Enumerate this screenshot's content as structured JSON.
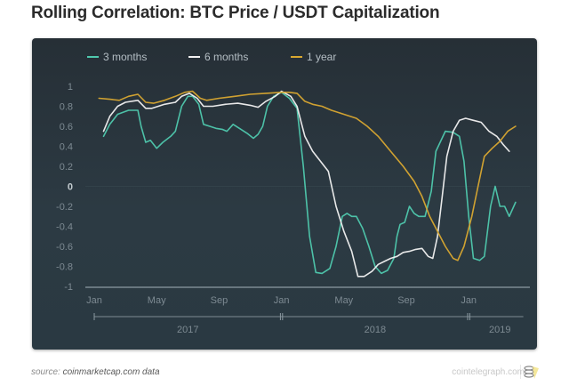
{
  "page": {
    "title": "Rolling Correlation: BTC Price / USDT Capitalization",
    "source_prefix": "source:",
    "source_text": "coinmarketcap.com data",
    "brand": "cointelegraph.com",
    "logo_icon": "cointelegraph-logo-icon"
  },
  "chart_data": {
    "type": "line",
    "title": "Rolling Correlation: BTC Price / USDT Capitalization",
    "xlabel": "",
    "ylabel": "",
    "ylim": [
      -1,
      1
    ],
    "x_unit": "months since Jan 2017",
    "xlim": [
      0,
      27.5
    ],
    "yticks": [
      "1",
      "0.8",
      "0.6",
      "0.4",
      "0.2",
      "0",
      "-0.2",
      "-0.4",
      "-0.6",
      "-0.8",
      "-1"
    ],
    "ytick_values": [
      1,
      0.8,
      0.6,
      0.4,
      0.2,
      0,
      -0.2,
      -0.4,
      -0.6,
      -0.8,
      -1
    ],
    "xticks": [
      "Jan",
      "May",
      "Sep",
      "Jan",
      "May",
      "Sep",
      "Jan"
    ],
    "xtick_values": [
      0,
      4,
      8,
      12,
      16,
      20,
      24
    ],
    "year_labels": [
      {
        "label": "2017",
        "x": 6
      },
      {
        "label": "2018",
        "x": 18
      },
      {
        "label": "2019",
        "x": 26
      }
    ],
    "year_boundaries": [
      0,
      12,
      24,
      27.5
    ],
    "grid": false,
    "legend_position": "top",
    "series": [
      {
        "name": "3 months",
        "color": "#4fc9ae",
        "points": [
          [
            0.6,
            0.5
          ],
          [
            1.0,
            0.62
          ],
          [
            1.5,
            0.72
          ],
          [
            2.2,
            0.76
          ],
          [
            2.8,
            0.76
          ],
          [
            3.0,
            0.6
          ],
          [
            3.3,
            0.44
          ],
          [
            3.6,
            0.46
          ],
          [
            4.0,
            0.38
          ],
          [
            4.4,
            0.44
          ],
          [
            4.9,
            0.5
          ],
          [
            5.2,
            0.55
          ],
          [
            5.6,
            0.8
          ],
          [
            6.0,
            0.9
          ],
          [
            6.3,
            0.9
          ],
          [
            6.7,
            0.82
          ],
          [
            7.0,
            0.62
          ],
          [
            7.4,
            0.6
          ],
          [
            7.8,
            0.58
          ],
          [
            8.2,
            0.57
          ],
          [
            8.5,
            0.55
          ],
          [
            8.9,
            0.62
          ],
          [
            9.4,
            0.57
          ],
          [
            9.8,
            0.53
          ],
          [
            10.2,
            0.48
          ],
          [
            10.5,
            0.52
          ],
          [
            10.8,
            0.6
          ],
          [
            11.1,
            0.8
          ],
          [
            11.5,
            0.9
          ],
          [
            12.0,
            0.94
          ],
          [
            12.5,
            0.88
          ],
          [
            13.0,
            0.78
          ],
          [
            13.4,
            0.2
          ],
          [
            13.8,
            -0.5
          ],
          [
            14.2,
            -0.86
          ],
          [
            14.6,
            -0.87
          ],
          [
            15.1,
            -0.82
          ],
          [
            15.5,
            -0.6
          ],
          [
            15.9,
            -0.3
          ],
          [
            16.2,
            -0.27
          ],
          [
            16.5,
            -0.3
          ],
          [
            16.8,
            -0.3
          ],
          [
            17.2,
            -0.42
          ],
          [
            17.6,
            -0.6
          ],
          [
            18.0,
            -0.8
          ],
          [
            18.4,
            -0.87
          ],
          [
            18.8,
            -0.84
          ],
          [
            19.2,
            -0.72
          ],
          [
            19.4,
            -0.5
          ],
          [
            19.6,
            -0.38
          ],
          [
            19.9,
            -0.36
          ],
          [
            20.2,
            -0.2
          ],
          [
            20.5,
            -0.27
          ],
          [
            20.8,
            -0.3
          ],
          [
            21.2,
            -0.3
          ],
          [
            21.6,
            -0.05
          ],
          [
            21.9,
            0.35
          ],
          [
            22.2,
            0.45
          ],
          [
            22.5,
            0.55
          ],
          [
            23.0,
            0.54
          ],
          [
            23.4,
            0.5
          ],
          [
            23.7,
            0.25
          ],
          [
            24.0,
            -0.3
          ],
          [
            24.3,
            -0.72
          ],
          [
            24.7,
            -0.74
          ],
          [
            25.0,
            -0.7
          ],
          [
            25.4,
            -0.2
          ],
          [
            25.7,
            0.0
          ],
          [
            26.0,
            -0.2
          ],
          [
            26.3,
            -0.2
          ],
          [
            26.6,
            -0.3
          ],
          [
            27.0,
            -0.16
          ]
        ]
      },
      {
        "name": "6 months",
        "color": "#f2f2f2",
        "points": [
          [
            0.6,
            0.55
          ],
          [
            1.0,
            0.7
          ],
          [
            1.5,
            0.8
          ],
          [
            2.0,
            0.84
          ],
          [
            2.8,
            0.86
          ],
          [
            3.3,
            0.78
          ],
          [
            3.7,
            0.78
          ],
          [
            4.5,
            0.82
          ],
          [
            5.2,
            0.84
          ],
          [
            5.6,
            0.9
          ],
          [
            6.1,
            0.93
          ],
          [
            6.6,
            0.88
          ],
          [
            7.0,
            0.8
          ],
          [
            7.6,
            0.8
          ],
          [
            8.4,
            0.82
          ],
          [
            9.2,
            0.83
          ],
          [
            10.0,
            0.81
          ],
          [
            10.5,
            0.79
          ],
          [
            11.0,
            0.85
          ],
          [
            11.6,
            0.9
          ],
          [
            12.0,
            0.95
          ],
          [
            12.6,
            0.9
          ],
          [
            13.0,
            0.8
          ],
          [
            13.5,
            0.5
          ],
          [
            14.0,
            0.35
          ],
          [
            14.5,
            0.25
          ],
          [
            15.0,
            0.15
          ],
          [
            15.5,
            -0.2
          ],
          [
            16.0,
            -0.45
          ],
          [
            16.5,
            -0.65
          ],
          [
            16.9,
            -0.9
          ],
          [
            17.3,
            -0.9
          ],
          [
            17.8,
            -0.85
          ],
          [
            18.2,
            -0.78
          ],
          [
            18.6,
            -0.75
          ],
          [
            19.0,
            -0.72
          ],
          [
            19.4,
            -0.7
          ],
          [
            19.8,
            -0.66
          ],
          [
            20.2,
            -0.65
          ],
          [
            20.6,
            -0.63
          ],
          [
            21.0,
            -0.62
          ],
          [
            21.4,
            -0.7
          ],
          [
            21.7,
            -0.72
          ],
          [
            22.0,
            -0.5
          ],
          [
            22.3,
            -0.1
          ],
          [
            22.6,
            0.3
          ],
          [
            23.0,
            0.55
          ],
          [
            23.4,
            0.66
          ],
          [
            23.8,
            0.68
          ],
          [
            24.3,
            0.66
          ],
          [
            24.8,
            0.64
          ],
          [
            25.3,
            0.55
          ],
          [
            25.8,
            0.5
          ],
          [
            26.2,
            0.42
          ],
          [
            26.6,
            0.35
          ]
        ]
      },
      {
        "name": "1 year",
        "color": "#d9a830",
        "points": [
          [
            0.3,
            0.88
          ],
          [
            1.0,
            0.87
          ],
          [
            1.6,
            0.86
          ],
          [
            2.2,
            0.9
          ],
          [
            2.8,
            0.92
          ],
          [
            3.3,
            0.84
          ],
          [
            3.8,
            0.83
          ],
          [
            4.5,
            0.86
          ],
          [
            5.2,
            0.9
          ],
          [
            5.8,
            0.94
          ],
          [
            6.3,
            0.95
          ],
          [
            6.8,
            0.88
          ],
          [
            7.2,
            0.86
          ],
          [
            8.0,
            0.88
          ],
          [
            9.0,
            0.9
          ],
          [
            10.0,
            0.92
          ],
          [
            11.0,
            0.93
          ],
          [
            12.0,
            0.94
          ],
          [
            12.5,
            0.94
          ],
          [
            13.0,
            0.93
          ],
          [
            13.5,
            0.85
          ],
          [
            14.0,
            0.82
          ],
          [
            14.6,
            0.8
          ],
          [
            15.2,
            0.76
          ],
          [
            16.0,
            0.72
          ],
          [
            16.8,
            0.68
          ],
          [
            17.5,
            0.6
          ],
          [
            18.2,
            0.5
          ],
          [
            19.0,
            0.35
          ],
          [
            19.8,
            0.2
          ],
          [
            20.5,
            0.05
          ],
          [
            21.0,
            -0.1
          ],
          [
            21.5,
            -0.3
          ],
          [
            22.0,
            -0.45
          ],
          [
            22.5,
            -0.6
          ],
          [
            23.0,
            -0.72
          ],
          [
            23.3,
            -0.74
          ],
          [
            23.7,
            -0.6
          ],
          [
            24.2,
            -0.3
          ],
          [
            24.6,
            0.0
          ],
          [
            25.0,
            0.3
          ],
          [
            25.5,
            0.38
          ],
          [
            26.0,
            0.45
          ],
          [
            26.5,
            0.55
          ],
          [
            27.0,
            0.6
          ]
        ]
      }
    ]
  }
}
